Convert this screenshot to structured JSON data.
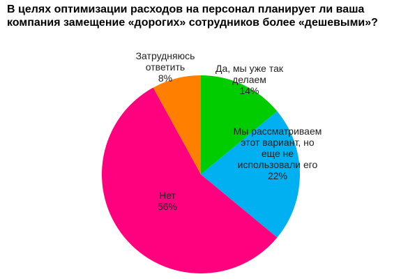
{
  "chart_data": {
    "type": "pie",
    "title": "В целях оптимизации расходов на персонал планирует ли ваша компания замещение «дорогих» сотрудников более «дешевыми»?",
    "categories": [
      "Да, мы уже так делаем",
      "Мы рассматриваем этот вариант, но еще не использовали его",
      "Нет",
      "Затрудняюсь ответить"
    ],
    "values": [
      14,
      22,
      56,
      8
    ],
    "value_labels": [
      "14%",
      "22%",
      "56%",
      "8%"
    ],
    "colors": [
      "#00cc00",
      "#00b0f0",
      "#ff007f",
      "#ff7f00"
    ]
  }
}
